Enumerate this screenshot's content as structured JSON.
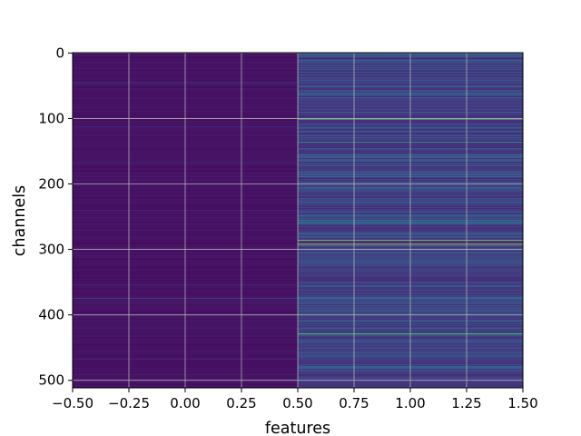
{
  "chart_data": {
    "type": "heatmap",
    "title": "",
    "xlabel": "features",
    "ylabel": "channels",
    "xlim": [
      -0.5,
      1.5
    ],
    "ylim": [
      511.5,
      -0.5
    ],
    "y_inverted": true,
    "grid": true,
    "colormap": "viridis",
    "n_rows": 512,
    "n_cols": 2,
    "x_ticks": [
      -0.5,
      -0.25,
      0.0,
      0.25,
      0.5,
      0.75,
      1.0,
      1.25,
      1.5
    ],
    "x_tick_labels": [
      "−0.50",
      "−0.25",
      "0.00",
      "0.25",
      "0.50",
      "0.75",
      "1.00",
      "1.25",
      "1.50"
    ],
    "y_ticks": [
      0,
      100,
      200,
      300,
      400,
      500
    ],
    "y_tick_labels": [
      "0",
      "100",
      "200",
      "300",
      "400",
      "500"
    ],
    "columns": [
      {
        "feature_index": 0,
        "base_level": 0.04,
        "bright_rows": [
          {
            "row": 45,
            "value": 0.25
          },
          {
            "row": 113,
            "value": 0.2
          },
          {
            "row": 240,
            "value": 0.15
          },
          {
            "row": 375,
            "value": 0.3
          },
          {
            "row": 401,
            "value": 0.22
          },
          {
            "row": 468,
            "value": 0.15
          }
        ]
      },
      {
        "feature_index": 1,
        "base_level": 0.15,
        "bright_rows": [
          {
            "row": 3,
            "value": 0.45
          },
          {
            "row": 14,
            "value": 0.38
          },
          {
            "row": 29,
            "value": 0.42
          },
          {
            "row": 42,
            "value": 0.35
          },
          {
            "row": 62,
            "value": 0.58
          },
          {
            "row": 68,
            "value": 0.4
          },
          {
            "row": 101,
            "value": 0.8
          },
          {
            "row": 136,
            "value": 0.7
          },
          {
            "row": 158,
            "value": 0.35
          },
          {
            "row": 185,
            "value": 0.55
          },
          {
            "row": 189,
            "value": 0.5
          },
          {
            "row": 205,
            "value": 0.6
          },
          {
            "row": 228,
            "value": 0.38
          },
          {
            "row": 256,
            "value": 0.6
          },
          {
            "row": 260,
            "value": 0.5
          },
          {
            "row": 286,
            "value": 0.9
          },
          {
            "row": 292,
            "value": 0.95
          },
          {
            "row": 322,
            "value": 0.4
          },
          {
            "row": 350,
            "value": 0.38
          },
          {
            "row": 380,
            "value": 0.4
          },
          {
            "row": 409,
            "value": 0.42
          },
          {
            "row": 420,
            "value": 0.5
          },
          {
            "row": 429,
            "value": 0.85
          },
          {
            "row": 432,
            "value": 0.45
          },
          {
            "row": 460,
            "value": 0.4
          },
          {
            "row": 481,
            "value": 0.42
          },
          {
            "row": 497,
            "value": 0.38
          }
        ]
      }
    ]
  }
}
